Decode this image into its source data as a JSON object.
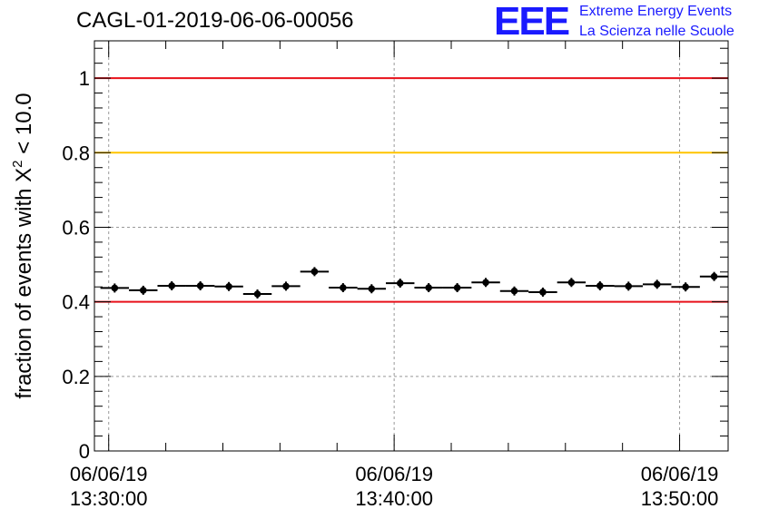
{
  "chart_data": {
    "type": "scatter",
    "title": "CAGL-01-2019-06-06-00056",
    "ylabel": "fraction of events with X² < 10.0",
    "ylabel_parts": {
      "prefix": "fraction of events with X",
      "sup": "2",
      "suffix": " < 10.0"
    },
    "xlabel": "",
    "ylim": [
      0,
      1.1
    ],
    "x_unit": "minutes after 2019-06-06 13:30:00",
    "xlim_minutes": [
      -0.5,
      21.7
    ],
    "y_ticks": [
      "0",
      "0.2",
      "0.4",
      "0.6",
      "0.8",
      "1"
    ],
    "x_ticks": [
      {
        "minute": 0,
        "date": "06/06/19",
        "time": "13:30:00"
      },
      {
        "minute": 10,
        "date": "06/06/19",
        "time": "13:40:00"
      },
      {
        "minute": 20,
        "date": "06/06/19",
        "time": "13:50:00"
      }
    ],
    "grid": true,
    "reference_lines": [
      {
        "y": 1.0,
        "color": "#e8101a"
      },
      {
        "y": 0.8,
        "color": "#ffc400"
      },
      {
        "y": 0.4,
        "color": "#e8101a"
      }
    ],
    "series": [
      {
        "x_min": [
          -0.29,
          0.71,
          1.71,
          2.71,
          3.71,
          4.71,
          5.71,
          6.71,
          7.71,
          8.71,
          9.71,
          10.71,
          11.71,
          12.71,
          13.71,
          14.71,
          15.71,
          16.71,
          17.71,
          18.71,
          19.71,
          20.71
        ],
        "y": [
          0.437,
          0.431,
          0.443,
          0.443,
          0.441,
          0.421,
          0.442,
          0.481,
          0.438,
          0.435,
          0.45,
          0.438,
          0.438,
          0.452,
          0.429,
          0.426,
          0.452,
          0.443,
          0.442,
          0.447,
          0.44,
          0.468
        ],
        "bin_width": 1.0
      }
    ]
  },
  "logo": {
    "mark": "EEE",
    "line1": "Extreme Energy Events",
    "line2": "La Scienza nelle Scuole"
  },
  "colors": {
    "marker": "#000000",
    "logo": "#1a1aff",
    "grid": "#999999"
  }
}
